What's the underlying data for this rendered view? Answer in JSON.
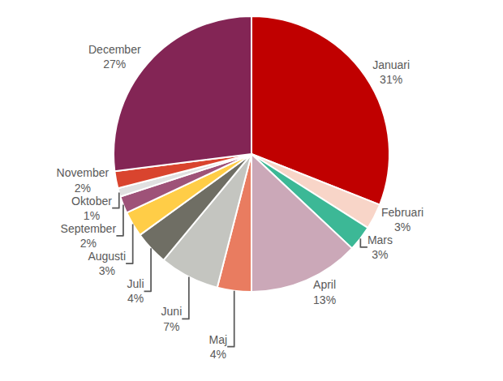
{
  "chart_data": {
    "type": "pie",
    "categories": [
      "Januari",
      "Februari",
      "Mars",
      "April",
      "Maj",
      "Juni",
      "Juli",
      "Augusti",
      "September",
      "Oktober",
      "November",
      "December"
    ],
    "values": [
      31,
      3,
      3,
      13,
      4,
      7,
      4,
      3,
      2,
      1,
      2,
      27
    ],
    "value_labels": [
      "31%",
      "3%",
      "3%",
      "13%",
      "4%",
      "7%",
      "4%",
      "3%",
      "2%",
      "1%",
      "2%",
      "27%"
    ],
    "colors": [
      "#c00000",
      "#f8d5c8",
      "#3cb896",
      "#cba8b8",
      "#e97c60",
      "#c4c5c0",
      "#6f6e64",
      "#ffcd47",
      "#9e5278",
      "#e0e0e0",
      "#d9442e",
      "#832555"
    ],
    "data_labels": true
  }
}
